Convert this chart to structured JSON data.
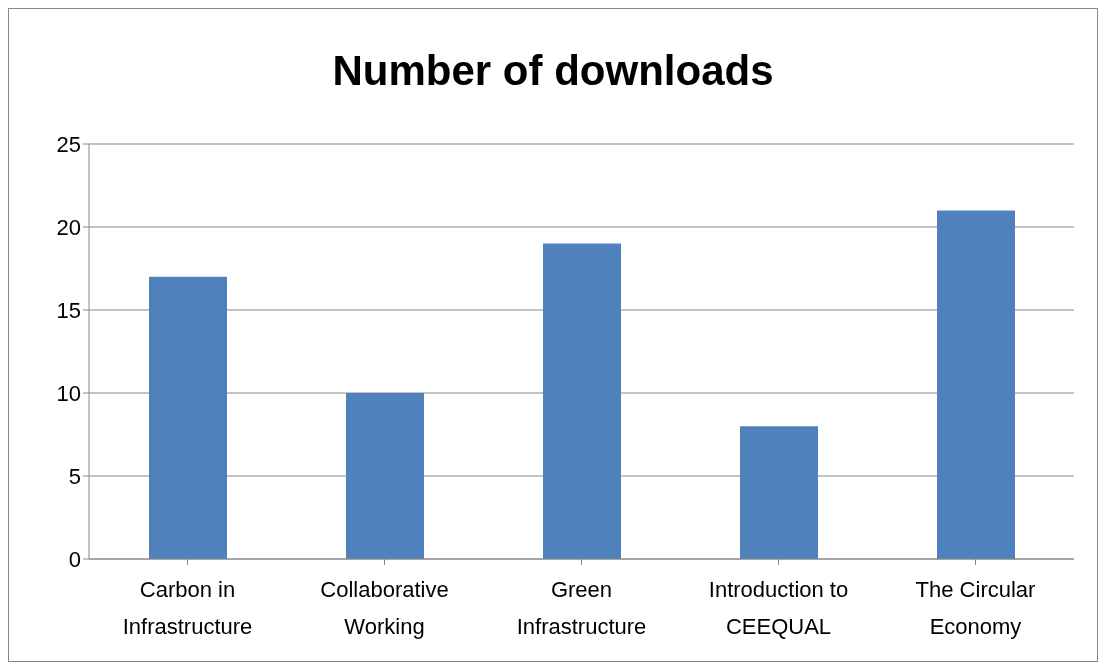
{
  "chart_data": {
    "type": "bar",
    "title": "Number of downloads",
    "categories": [
      "Carbon in Infrastructure",
      "Collaborative Working",
      "Green Infrastructure",
      "Introduction to CEEQUAL",
      "The Circular Economy"
    ],
    "values": [
      17,
      10,
      19,
      8,
      21
    ],
    "color": "#4f81bd",
    "ylim": [
      0,
      25
    ],
    "yticks": [
      0,
      5,
      10,
      15,
      20,
      25
    ],
    "grid": "y"
  }
}
